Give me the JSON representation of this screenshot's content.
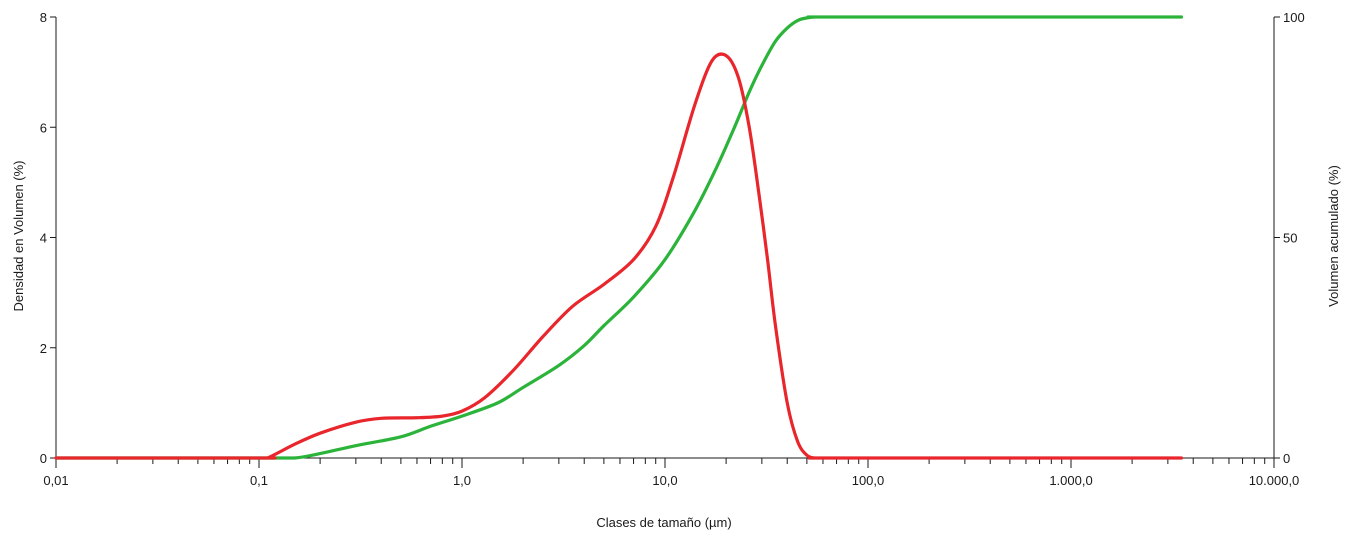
{
  "chart_data": {
    "type": "line",
    "xlabel": "Clases de tamaño (µm)",
    "ylabel": "Densidad en Volumen (%)",
    "y2label": "Volumen acumulado (%)",
    "x_scale": "log",
    "xlim": [
      0.01,
      10000
    ],
    "ylim": [
      0,
      8
    ],
    "y2lim": [
      0,
      100
    ],
    "x_ticks": [
      {
        "value": 0.01,
        "label": "0,01"
      },
      {
        "value": 0.1,
        "label": "0,1"
      },
      {
        "value": 1,
        "label": "1,0"
      },
      {
        "value": 10,
        "label": "10,0"
      },
      {
        "value": 100,
        "label": "100,0"
      },
      {
        "value": 1000,
        "label": "1.000,0"
      },
      {
        "value": 10000,
        "label": "10.000,0"
      }
    ],
    "y_ticks": [
      {
        "value": 0,
        "label": "0"
      },
      {
        "value": 2,
        "label": "2"
      },
      {
        "value": 4,
        "label": "4"
      },
      {
        "value": 6,
        "label": "6"
      },
      {
        "value": 8,
        "label": "8"
      }
    ],
    "y2_ticks": [
      {
        "value": 0,
        "label": "0"
      },
      {
        "value": 50,
        "label": "50"
      },
      {
        "value": 100,
        "label": "100"
      }
    ],
    "grid": false,
    "series": [
      {
        "color": "#e8262c",
        "axis": "left",
        "x": [
          0.01,
          0.1,
          0.11,
          0.15,
          0.2,
          0.3,
          0.4,
          0.6,
          0.8,
          1.0,
          1.3,
          1.8,
          2.5,
          3.5,
          5.0,
          7.0,
          9.0,
          11.0,
          14.0,
          17.0,
          20.0,
          23.0,
          26.0,
          29.0,
          32.0,
          35.0,
          40.0,
          45.0,
          50.0,
          55.0,
          62.0,
          70.0,
          3500
        ],
        "values": [
          0,
          0,
          0,
          0.25,
          0.45,
          0.65,
          0.72,
          0.73,
          0.76,
          0.85,
          1.1,
          1.6,
          2.2,
          2.75,
          3.15,
          3.6,
          4.2,
          5.1,
          6.4,
          7.2,
          7.3,
          6.9,
          6.0,
          4.8,
          3.6,
          2.4,
          1.0,
          0.3,
          0.05,
          0,
          0,
          0,
          0
        ]
      },
      {
        "color": "#2bb33a",
        "axis": "right",
        "x": [
          0.01,
          0.1,
          0.15,
          0.2,
          0.3,
          0.5,
          0.7,
          1.0,
          1.5,
          2.0,
          3.0,
          4.0,
          5.0,
          7.0,
          10.0,
          14.0,
          18.0,
          22.0,
          26.0,
          30.0,
          35.0,
          40.0,
          45.0,
          50.0,
          55.0,
          60.0,
          70.0,
          3500
        ],
        "values": [
          0,
          0,
          0,
          1.0,
          2.8,
          4.8,
          7.2,
          9.5,
          12.5,
          16.0,
          21.0,
          25.5,
          30.0,
          36.5,
          45.0,
          56.0,
          66.0,
          75.0,
          83.0,
          89.0,
          94.5,
          97.5,
          99.2,
          99.8,
          100,
          100,
          100,
          100
        ]
      }
    ]
  }
}
